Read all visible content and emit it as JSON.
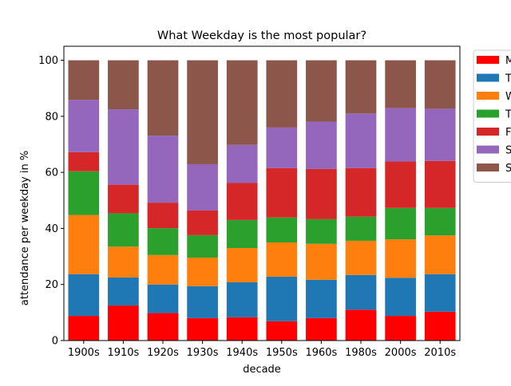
{
  "chart_data": {
    "type": "bar",
    "stacked": true,
    "title": "What Weekday is the most popular?",
    "xlabel": "decade",
    "ylabel": "attendance per weekday in %",
    "ylim": [
      0,
      105
    ],
    "yticks": [
      0,
      20,
      40,
      60,
      80,
      100
    ],
    "grid": false,
    "legend_position": "top-right, outside plot",
    "categories": [
      "1900s",
      "1910s",
      "1920s",
      "1930s",
      "1940s",
      "1950s",
      "1960s",
      "1980s",
      "2000s",
      "2010s"
    ],
    "series": [
      {
        "name": "M",
        "color": "#ff0000",
        "values": [
          8.8,
          12.5,
          9.8,
          8.0,
          8.3,
          6.9,
          8.0,
          11.0,
          8.8,
          10.3
        ]
      },
      {
        "name": "T",
        "color": "#1f77b4",
        "values": [
          14.9,
          10.0,
          10.2,
          11.4,
          12.5,
          15.9,
          13.7,
          12.4,
          13.6,
          13.4
        ]
      },
      {
        "name": "W",
        "color": "#ff7f0e",
        "values": [
          21.1,
          11.0,
          10.5,
          10.2,
          12.2,
          12.2,
          12.8,
          12.2,
          13.7,
          13.8
        ]
      },
      {
        "name": "T",
        "color": "#2ca02c",
        "values": [
          15.6,
          11.9,
          9.6,
          8.0,
          10.0,
          8.9,
          8.8,
          8.6,
          11.2,
          9.8
        ]
      },
      {
        "name": "F",
        "color": "#d62728",
        "values": [
          6.8,
          10.2,
          9.1,
          8.8,
          13.2,
          17.6,
          17.9,
          17.3,
          16.6,
          16.8
        ]
      },
      {
        "name": "S",
        "color": "#9467bd",
        "values": [
          18.7,
          26.9,
          23.9,
          16.5,
          13.6,
          14.5,
          16.9,
          19.5,
          19.0,
          18.6
        ]
      },
      {
        "name": "S",
        "color": "#8c564b",
        "values": [
          14.1,
          17.5,
          26.9,
          37.1,
          30.2,
          24.0,
          21.9,
          19.0,
          17.1,
          17.3
        ]
      }
    ]
  }
}
